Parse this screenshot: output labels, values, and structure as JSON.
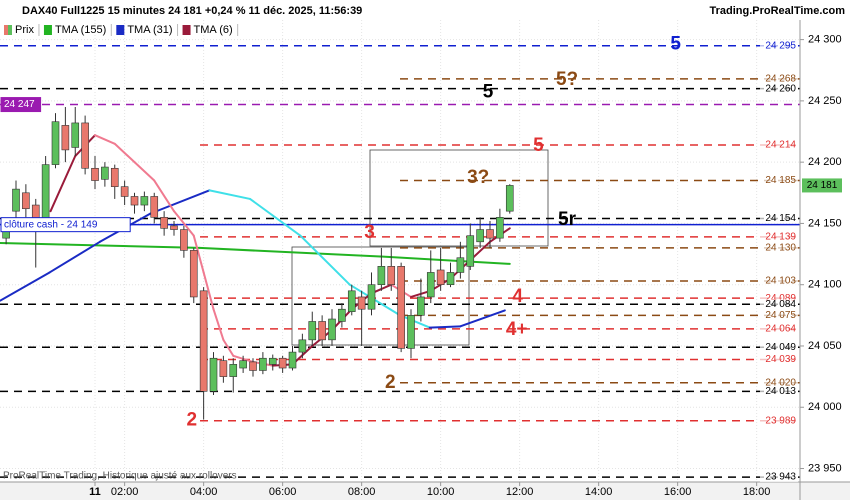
{
  "chart_data": {
    "type": "candlestick",
    "title": "DAX40 Full1225 15 minutes 24 181 +0,24 % 11 déc. 2025, 11:56:39",
    "source": "Trading.ProRealTime.com",
    "footer": "ProRealTime Trading, Historique ajusté aux rollovers",
    "grid": true,
    "xlim": [
      -9.62,
      71.39
    ],
    "xticks": [
      {
        "value": 0,
        "label": "11"
      },
      {
        "value": 3,
        "label": "02:00"
      },
      {
        "value": 11,
        "label": "04:00"
      },
      {
        "value": 19,
        "label": "06:00"
      },
      {
        "value": 27,
        "label": "08:00"
      },
      {
        "value": 35,
        "label": "10:00"
      },
      {
        "value": 43,
        "label": "12:00"
      },
      {
        "value": 51,
        "label": "14:00"
      },
      {
        "value": 59,
        "label": "16:00"
      },
      {
        "value": 67,
        "label": "18:00"
      }
    ],
    "ylim": [
      23939,
      24316
    ],
    "yticks": [
      {
        "value": 24300,
        "label": "24 300"
      },
      {
        "value": 24250,
        "label": "24 250"
      },
      {
        "value": 24200,
        "label": "24 200"
      },
      {
        "value": 24150,
        "label": "24 150"
      },
      {
        "value": 24100,
        "label": "24 100"
      },
      {
        "value": 24050,
        "label": "24 050"
      },
      {
        "value": 24000,
        "label": "24 000"
      },
      {
        "value": 23950,
        "label": "23 950"
      }
    ],
    "series": [
      {
        "name": "Prix",
        "color": "#5cbf5c",
        "down_color": "#e8786c",
        "x": [
          -9,
          -8,
          -7,
          -6,
          -5,
          -4,
          -3,
          -2,
          -1,
          0,
          1,
          2,
          3,
          4,
          5,
          6,
          7,
          8,
          9,
          10,
          11,
          12,
          13,
          14,
          15,
          16,
          17,
          18,
          19,
          20,
          21,
          22,
          23,
          24,
          25,
          26,
          27,
          28,
          29,
          30,
          31,
          32,
          33,
          34,
          35,
          36,
          37,
          38,
          39,
          40,
          41,
          42
        ],
        "open": [
          24138,
          24160,
          24175,
          24165,
          24150,
          24198,
          24230,
          24212,
          24232,
          24195,
          24186,
          24195,
          24180,
          24172,
          24165,
          24172,
          24155,
          24148,
          24145,
          24128,
          24095,
          24013,
          24038,
          24025,
          24032,
          24037,
          24030,
          24035,
          24040,
          24032,
          24045,
          24055,
          24070,
          24055,
          24070,
          24078,
          24090,
          24080,
          24100,
          24115,
          24115,
          24048,
          24075,
          24090,
          24112,
          24100,
          24110,
          24115,
          24135,
          24145,
          24138,
          24160
        ],
        "high": [
          24152,
          24185,
          24182,
          24170,
          24205,
          24240,
          24245,
          24245,
          24238,
          24205,
          24200,
          24198,
          24185,
          24175,
          24176,
          24175,
          24160,
          24152,
          24148,
          24130,
          24098,
          24045,
          24042,
          24040,
          24042,
          24040,
          24045,
          24043,
          24042,
          24050,
          24060,
          24078,
          24075,
          24080,
          24085,
          24100,
          24095,
          24110,
          24130,
          24130,
          24118,
          24080,
          24105,
          24128,
          24130,
          24118,
          24135,
          24150,
          24155,
          24152,
          24162,
          24182
        ],
        "low": [
          24133,
          24150,
          24155,
          24114,
          24145,
          24195,
          24200,
          24205,
          24190,
          24178,
          24180,
          24170,
          24165,
          24158,
          24160,
          24150,
          24140,
          24140,
          24122,
          24085,
          23990,
          24010,
          24020,
          24012,
          24028,
          24025,
          24027,
          24030,
          24028,
          24030,
          24040,
          24050,
          24050,
          24050,
          24065,
          24075,
          24050,
          24075,
          24095,
          24095,
          24045,
          24040,
          24070,
          24085,
          24095,
          24098,
          24105,
          24112,
          24130,
          24130,
          24135,
          24158
        ],
        "close": [
          24148,
          24178,
          24162,
          24150,
          24198,
          24233,
          24210,
          24232,
          24195,
          24185,
          24196,
          24180,
          24172,
          24165,
          24172,
          24155,
          24146,
          24145,
          24128,
          24090,
          24013,
          24040,
          24025,
          24035,
          24038,
          24030,
          24040,
          24040,
          24032,
          24045,
          24055,
          24070,
          24055,
          24072,
          24080,
          24095,
          24080,
          24100,
          24115,
          24100,
          24048,
          24075,
          24090,
          24110,
          24100,
          24110,
          24122,
          24140,
          24145,
          24138,
          24155,
          24181
        ]
      },
      {
        "name": "TMA (155)",
        "color": "#22b422",
        "x": [
          -9.6,
          10.6,
          28.9,
          42
        ],
        "values": [
          24134,
          24130,
          24123,
          24117
        ]
      },
      {
        "name": "TMA (31)",
        "color": "#1a2bc4",
        "down_color": "#3fe0e8",
        "x": [
          -9.6,
          -4.6,
          0.5,
          5.6,
          11.6,
          15.7,
          20.8,
          25.8,
          30.9,
          33.9,
          37,
          41.5
        ],
        "values": [
          24087,
          24110,
          24135,
          24158,
          24177,
          24170,
          24140,
          24100,
          24075,
          24065,
          24066,
          24079
        ]
      },
      {
        "name": "TMA (6)",
        "color": "#9a1b3a",
        "down_color": "#f07a90",
        "x": [
          -4.5,
          -2,
          0,
          2,
          4,
          6,
          8,
          10,
          11,
          12,
          13,
          14,
          16,
          18,
          20,
          22,
          24,
          26,
          28,
          30,
          32,
          34,
          36,
          38,
          40,
          42
        ],
        "values": [
          24160,
          24205,
          24222,
          24215,
          24200,
          24185,
          24160,
          24140,
          24110,
          24080,
          24055,
          24042,
          24037,
          24034,
          24035,
          24050,
          24063,
          24080,
          24093,
          24100,
          24090,
          24095,
          24105,
          24120,
          24135,
          24146
        ]
      }
    ],
    "levels": [
      {
        "value": 24295,
        "label": "24 295",
        "color": "#1020d0"
      },
      {
        "value": 24268,
        "label": "24 268",
        "color": "#8b4a14"
      },
      {
        "value": 24260,
        "label": "24 260",
        "color": "#000000"
      },
      {
        "value": 24247,
        "label": "24 247",
        "color": "#9a1ab0",
        "side": "left"
      },
      {
        "value": 24214,
        "label": "24 214",
        "color": "#e03030"
      },
      {
        "value": 24185,
        "label": "24 185",
        "color": "#8b4a14"
      },
      {
        "value": 24154,
        "label": "24 154",
        "color": "#000000"
      },
      {
        "value": 24149,
        "label": "clôture cash -  24 149",
        "color": "#1020d0",
        "side": "left",
        "solid": true
      },
      {
        "value": 24139,
        "label": "24 139",
        "color": "#e03030"
      },
      {
        "value": 24130,
        "label": "24 130",
        "color": "#8b4a14"
      },
      {
        "value": 24103,
        "label": "24 103",
        "color": "#8b4a14"
      },
      {
        "value": 24089,
        "label": "24 089",
        "color": "#e03030"
      },
      {
        "value": 24084,
        "label": "24 084",
        "color": "#000000"
      },
      {
        "value": 24075,
        "label": "24 075",
        "color": "#8b4a14"
      },
      {
        "value": 24064,
        "label": "24 064",
        "color": "#e03030"
      },
      {
        "value": 24049,
        "label": "24 049",
        "color": "#000000"
      },
      {
        "value": 24039,
        "label": "24 039",
        "color": "#e03030"
      },
      {
        "value": 24020,
        "label": "24 020",
        "color": "#8b4a14"
      },
      {
        "value": 24013,
        "label": "24 013",
        "color": "#000000"
      },
      {
        "value": 23989,
        "label": "23 989",
        "color": "#e03030"
      },
      {
        "value": 23943,
        "label": "23 943",
        "color": "#000000"
      }
    ],
    "last_price": {
      "value": 24181,
      "label": "24 181",
      "color": "#5cbf5c"
    },
    "annotations": [
      {
        "text": "5",
        "x": 58.8,
        "y": 24296,
        "color": "#1020d0"
      },
      {
        "text": "5?",
        "x": 47.8,
        "y": 24267,
        "color": "#8b4a14"
      },
      {
        "text": "5",
        "x": 39.8,
        "y": 24257,
        "color": "#000000"
      },
      {
        "text": "5",
        "x": 44.9,
        "y": 24213,
        "color": "#e03030"
      },
      {
        "text": "3?",
        "x": 38.8,
        "y": 24187,
        "color": "#8b4a14"
      },
      {
        "text": "5r",
        "x": 47.8,
        "y": 24153,
        "color": "#000000"
      },
      {
        "text": "3",
        "x": 27.8,
        "y": 24142,
        "color": "#e03030"
      },
      {
        "text": "4",
        "x": 42.8,
        "y": 24090,
        "color": "#e03030"
      },
      {
        "text": "4+",
        "x": 42.7,
        "y": 24063,
        "color": "#e03030"
      },
      {
        "text": "2",
        "x": 29.9,
        "y": 24020,
        "color": "#8b4a14"
      },
      {
        "text": "2",
        "x": 9.8,
        "y": 23989,
        "color": "#e03030"
      }
    ]
  }
}
